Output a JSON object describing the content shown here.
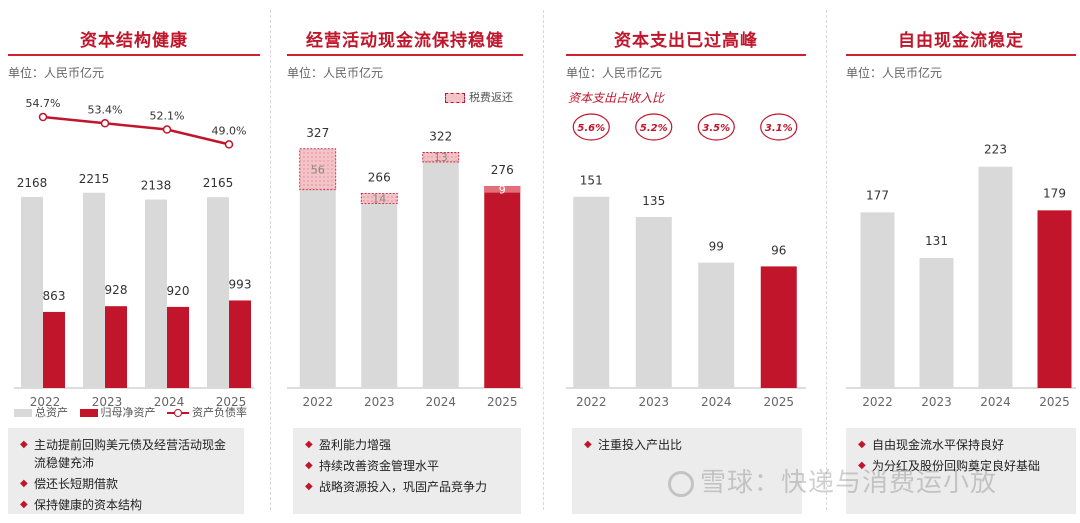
{
  "unit_label": "单位：人民币亿元",
  "colors": {
    "gray": "#d9d9d9",
    "red": "#c0152a",
    "tax": "#f3c3c7"
  },
  "panels": [
    {
      "title": "资本结构健康",
      "legend": {
        "total_assets": "总资产",
        "net_assets": "归母净资产",
        "debt_ratio": "资产负债率"
      },
      "notes": [
        "主动提前回购美元债及经营活动现金流稳健充沛",
        "偿还长短期借款",
        "保持健康的资本结构"
      ]
    },
    {
      "title": "经营活动现金流保持稳健",
      "legend_tax": "税费返还",
      "notes": [
        "盈利能力增强",
        "持续改善资金管理水平",
        "战略资源投入，巩固产品竞争力"
      ]
    },
    {
      "title": "资本支出已过高峰",
      "ratio_caption": "资本支出占收入比",
      "notes": [
        "注重投入产出比"
      ]
    },
    {
      "title": "自由现金流稳定",
      "notes": [
        "自由现金流水平保持良好",
        "为分红及股份回购奠定良好基础"
      ]
    }
  ],
  "chart_data": [
    {
      "type": "bar",
      "title": "资本结构健康",
      "categories": [
        "2022",
        "2023",
        "2024",
        "2025"
      ],
      "series": [
        {
          "name": "总资产",
          "values": [
            2168,
            2215,
            2138,
            2165
          ]
        },
        {
          "name": "归母净资产",
          "values": [
            863,
            928,
            920,
            993
          ]
        },
        {
          "name": "资产负债率",
          "type": "line",
          "values": [
            54.7,
            53.4,
            52.1,
            49.0
          ],
          "labels": [
            "54.7%",
            "53.4%",
            "52.1%",
            "49.0%"
          ]
        }
      ],
      "ylim": [
        0,
        2700
      ]
    },
    {
      "type": "bar",
      "title": "经营活动现金流保持稳健",
      "categories": [
        "2022",
        "2023",
        "2024",
        "2025"
      ],
      "series": [
        {
          "name": "",
          "values": [
            327,
            266,
            322,
            276
          ]
        },
        {
          "name": "税费返还",
          "values": [
            56,
            14,
            13,
            9
          ]
        }
      ],
      "ylim": [
        0,
        380
      ]
    },
    {
      "type": "bar",
      "title": "资本支出已过高峰",
      "categories": [
        "2022",
        "2023",
        "2024",
        "2025"
      ],
      "values": [
        151,
        135,
        99,
        96
      ],
      "ratio_labels": [
        "5.6%",
        "5.2%",
        "3.5%",
        "3.1%"
      ],
      "ylim": [
        0,
        180
      ]
    },
    {
      "type": "bar",
      "title": "自由现金流稳定",
      "categories": [
        "2022",
        "2023",
        "2024",
        "2025"
      ],
      "values": [
        177,
        131,
        223,
        179
      ],
      "ylim": [
        0,
        265
      ]
    }
  ],
  "watermark": "雪球：快递与消费运小放"
}
